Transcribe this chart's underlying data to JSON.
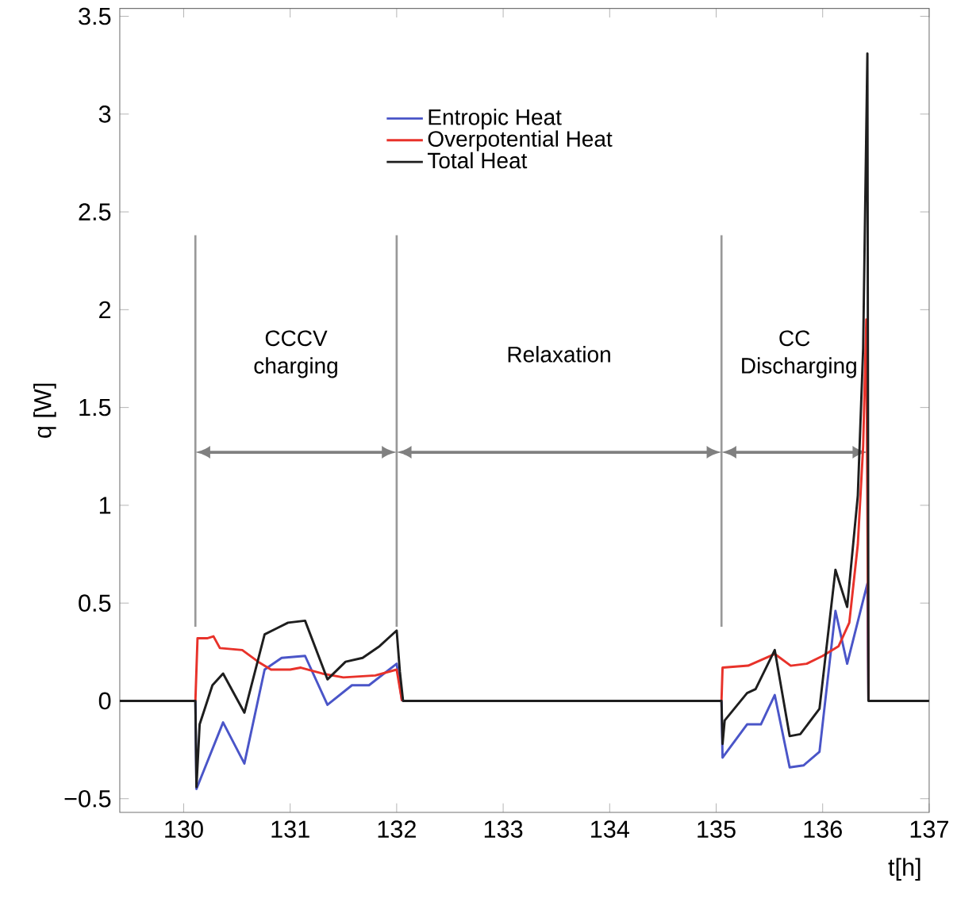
{
  "chart_data": {
    "type": "line",
    "xlabel": "t[h]",
    "ylabel": "q [W]",
    "xlim": [
      129.4,
      137
    ],
    "ylim": [
      -0.57,
      3.54
    ],
    "xticks": [
      130,
      131,
      132,
      133,
      134,
      135,
      136,
      137
    ],
    "yticks": [
      {
        "value": -0.5,
        "label": "−0.5"
      },
      0,
      0.5,
      1,
      1.5,
      2,
      2.5,
      3,
      3.5
    ],
    "legend": "top",
    "grid": false,
    "line_style": "solid",
    "series": [
      {
        "name": "Entropic Heat",
        "color": "#4a55c8",
        "x": [
          130.11,
          130.12,
          130.37,
          130.57,
          130.76,
          130.92,
          131.14,
          131.35,
          131.58,
          131.74,
          132.0,
          132.05,
          133.5,
          135.05,
          135.06,
          135.29,
          135.42,
          135.55,
          135.69,
          135.82,
          135.97,
          136.12,
          136.23,
          136.42,
          136.43
        ],
        "values": [
          0,
          -0.45,
          -0.11,
          -0.32,
          0.16,
          0.22,
          0.23,
          -0.02,
          0.08,
          0.08,
          0.19,
          0,
          null,
          0,
          -0.29,
          -0.12,
          -0.12,
          0.03,
          -0.34,
          -0.33,
          -0.26,
          0.46,
          0.19,
          0.6,
          0
        ]
      },
      {
        "name": "Overpotential Heat",
        "color": "#e8322a",
        "x": [
          130.11,
          130.13,
          130.22,
          130.28,
          130.34,
          130.55,
          130.7,
          130.82,
          131.0,
          131.1,
          131.3,
          131.5,
          131.8,
          132.0,
          132.05,
          133.5,
          135.05,
          135.06,
          135.3,
          135.55,
          135.7,
          135.85,
          136.0,
          136.15,
          136.25,
          136.33,
          136.38,
          136.41,
          136.43
        ],
        "values": [
          0,
          0.32,
          0.32,
          0.33,
          0.27,
          0.26,
          0.2,
          0.16,
          0.16,
          0.17,
          0.14,
          0.12,
          0.13,
          0.16,
          0,
          null,
          0,
          0.17,
          0.18,
          0.24,
          0.18,
          0.19,
          0.23,
          0.28,
          0.4,
          0.8,
          1.3,
          1.95,
          0
        ]
      },
      {
        "name": "Total Heat",
        "color": "#1e1e1e",
        "x": [
          129.4,
          130.11,
          130.12,
          130.15,
          130.27,
          130.37,
          130.57,
          130.76,
          130.87,
          130.98,
          131.14,
          131.35,
          131.52,
          131.68,
          131.84,
          132.0,
          132.03,
          132.06,
          135.05,
          135.06,
          135.08,
          135.29,
          135.37,
          135.55,
          135.69,
          135.79,
          135.97,
          136.12,
          136.23,
          136.33,
          136.38,
          136.42,
          136.43,
          137
        ],
        "values": [
          0,
          0,
          -0.44,
          -0.12,
          0.08,
          0.14,
          -0.06,
          0.34,
          0.37,
          0.4,
          0.41,
          0.11,
          0.2,
          0.22,
          0.28,
          0.36,
          0.15,
          0,
          0,
          -0.22,
          -0.1,
          0.04,
          0.06,
          0.26,
          -0.18,
          -0.17,
          -0.04,
          0.67,
          0.48,
          1.05,
          1.8,
          3.31,
          0,
          0
        ]
      }
    ],
    "ref_lines": [
      {
        "axis": "x",
        "value": 130.11,
        "color": "#999999"
      },
      {
        "axis": "x",
        "value": 132.0,
        "color": "#999999"
      },
      {
        "axis": "x",
        "value": 135.05,
        "color": "#999999"
      }
    ],
    "annotations": [
      "CCCV charging",
      "Relaxation",
      "CC Discharging"
    ]
  }
}
